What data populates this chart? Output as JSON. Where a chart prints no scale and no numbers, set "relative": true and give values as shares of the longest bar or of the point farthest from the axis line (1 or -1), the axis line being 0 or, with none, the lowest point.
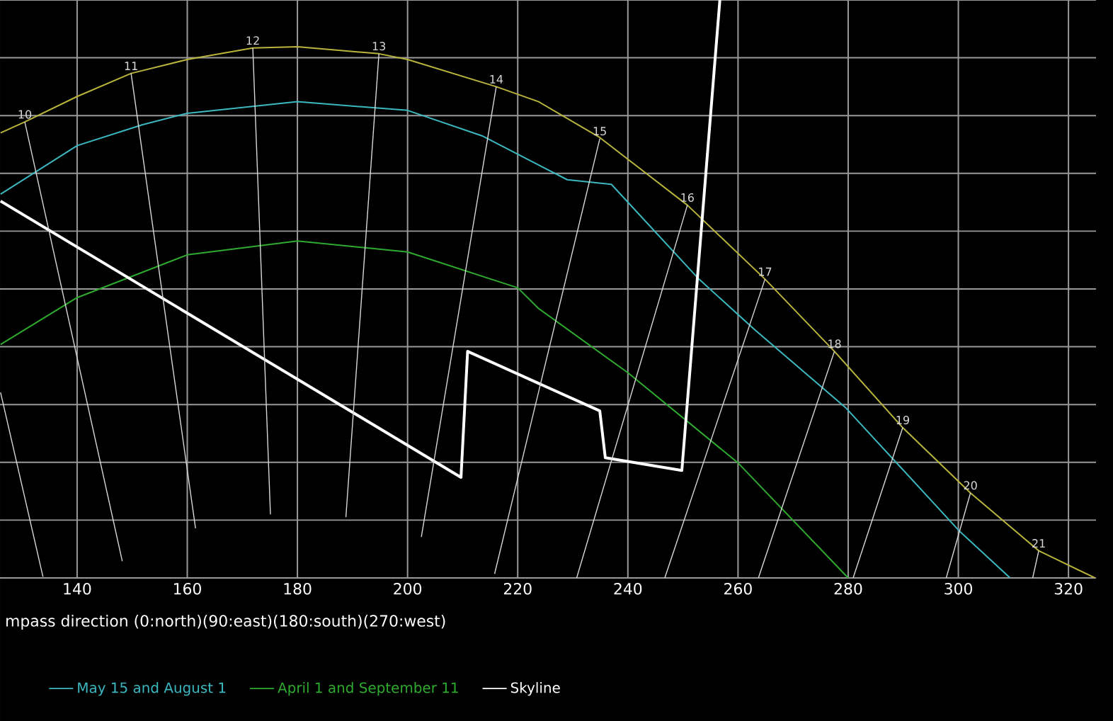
{
  "chart_data": {
    "type": "line",
    "relative": true,
    "xlabel": "mpass direction (0:north)(90:east)(180:south)(270:west)",
    "xlim": [
      126,
      325
    ],
    "xticks": [
      140,
      160,
      180,
      200,
      220,
      240,
      260,
      280,
      300,
      320
    ],
    "grid": true,
    "legend": "bottom",
    "marker": "none",
    "line_style": "solid",
    "series": [
      {
        "color": "#b8b43c",
        "x": [
          126.1,
          130.5,
          140,
          149.8,
          160,
          171.9,
          180,
          194.8,
          200,
          216.1,
          223.8,
          234.9,
          250.8,
          264.9,
          277.5,
          289.9,
          302.2,
          314.6,
          324.8
        ],
        "values": [
          0.77,
          0.789,
          0.833,
          0.873,
          0.897,
          0.917,
          0.919,
          0.907,
          0.897,
          0.85,
          0.824,
          0.762,
          0.645,
          0.517,
          0.392,
          0.26,
          0.147,
          0.047,
          0.0
        ]
      },
      {
        "name": "May 15 and August 1",
        "color": "#3cb8c0",
        "x": [
          126.1,
          140,
          151.8,
          160,
          180,
          200,
          213.5,
          229,
          237,
          252.9,
          263.1,
          279.6,
          300.2,
          309.4
        ],
        "values": [
          0.664,
          0.748,
          0.784,
          0.804,
          0.824,
          0.809,
          0.765,
          0.689,
          0.681,
          0.517,
          0.429,
          0.294,
          0.081,
          0.0
        ]
      },
      {
        "name": "April 1 and September 11",
        "color": "#2eaa2e",
        "x": [
          126.1,
          140,
          160,
          180,
          200,
          220,
          223.8,
          240,
          260,
          280
        ],
        "values": [
          0.404,
          0.485,
          0.559,
          0.583,
          0.564,
          0.502,
          0.466,
          0.355,
          0.199,
          0.0
        ]
      },
      {
        "name": "Skyline",
        "color": "#ffffff",
        "x": [
          126.1,
          209.7,
          210.9,
          234.9,
          235.9,
          249.8,
          256.7
        ],
        "values": [
          0.652,
          0.174,
          0.392,
          0.289,
          0.208,
          0.186,
          1.0
        ]
      },
      {
        "color": "#d8d8d8",
        "x": [
          133.8,
          126.1
        ],
        "values": [
          0.002,
          0.321
        ]
      },
      {
        "name": "10",
        "color": "#d8d8d8",
        "x": [
          148.2,
          130.5
        ],
        "values": [
          0.029,
          0.789
        ]
      },
      {
        "name": "11",
        "color": "#d8d8d8",
        "x": [
          161.5,
          149.8
        ],
        "values": [
          0.086,
          0.873
        ]
      },
      {
        "name": "12",
        "color": "#d8d8d8",
        "x": [
          175.1,
          171.9
        ],
        "values": [
          0.11,
          0.917
        ]
      },
      {
        "name": "13",
        "color": "#d8d8d8",
        "x": [
          188.8,
          194.8
        ],
        "values": [
          0.105,
          0.907
        ]
      },
      {
        "name": "14",
        "color": "#d8d8d8",
        "x": [
          202.5,
          216.1
        ],
        "values": [
          0.071,
          0.85
        ]
      },
      {
        "name": "15",
        "color": "#d8d8d8",
        "x": [
          215.8,
          234.9
        ],
        "values": [
          0.007,
          0.76
        ]
      },
      {
        "name": "16",
        "color": "#d8d8d8",
        "x": [
          230.7,
          250.8
        ],
        "values": [
          0.0,
          0.645
        ]
      },
      {
        "name": "17",
        "color": "#d8d8d8",
        "x": [
          246.7,
          264.9
        ],
        "values": [
          0.0,
          0.517
        ]
      },
      {
        "name": "18",
        "color": "#d8d8d8",
        "x": [
          263.7,
          277.5
        ],
        "values": [
          0.0,
          0.392
        ]
      },
      {
        "name": "19",
        "color": "#d8d8d8",
        "x": [
          280.9,
          289.9
        ],
        "values": [
          0.0,
          0.26
        ]
      },
      {
        "name": "20",
        "color": "#d8d8d8",
        "x": [
          297.8,
          302.2
        ],
        "values": [
          0.0,
          0.147
        ]
      },
      {
        "name": "21",
        "color": "#d8d8d8",
        "x": [
          313.5,
          314.6
        ],
        "values": [
          0.0,
          0.047
        ]
      }
    ]
  }
}
